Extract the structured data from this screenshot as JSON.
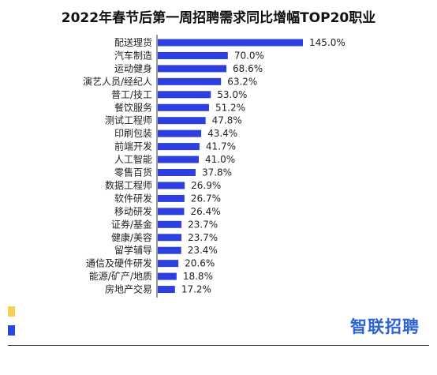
{
  "colors": {
    "bar": "#2d3fdc",
    "axis": "#333333",
    "accent_yellow": "#f7cf55",
    "accent_blue": "#2b45e0",
    "logo": "#2f63d8"
  },
  "logo": {
    "text": "智联招聘"
  },
  "chart_data": {
    "type": "bar",
    "orientation": "horizontal",
    "title": "2022年春节后第一周招聘需求同比增幅TOP20职业",
    "xlabel": "",
    "ylabel": "",
    "xlim": [
      0,
      150
    ],
    "grid": false,
    "legend": "none",
    "categories": [
      "配送理货",
      "汽车制造",
      "运动健身",
      "演艺人员/经纪人",
      "普工/技工",
      "餐饮服务",
      "测试工程师",
      "印刷包装",
      "前端开发",
      "人工智能",
      "零售百货",
      "数据工程师",
      "软件研发",
      "移动研发",
      "证券/基金",
      "健康/美容",
      "留学辅导",
      "通信及硬件研发",
      "能源/矿产/地质",
      "房地产交易"
    ],
    "values": [
      145.0,
      70.0,
      68.6,
      63.2,
      53.0,
      51.2,
      47.8,
      43.4,
      41.7,
      41.0,
      37.8,
      26.9,
      26.7,
      26.4,
      23.7,
      23.7,
      23.4,
      20.6,
      18.8,
      17.2
    ],
    "value_labels": [
      "145.0%",
      "70.0%",
      "68.6%",
      "63.2%",
      "53.0%",
      "51.2%",
      "47.8%",
      "43.4%",
      "41.7%",
      "41.0%",
      "37.8%",
      "26.9%",
      "26.7%",
      "26.4%",
      "23.7%",
      "23.7%",
      "23.4%",
      "20.6%",
      "18.8%",
      "17.2%"
    ]
  }
}
